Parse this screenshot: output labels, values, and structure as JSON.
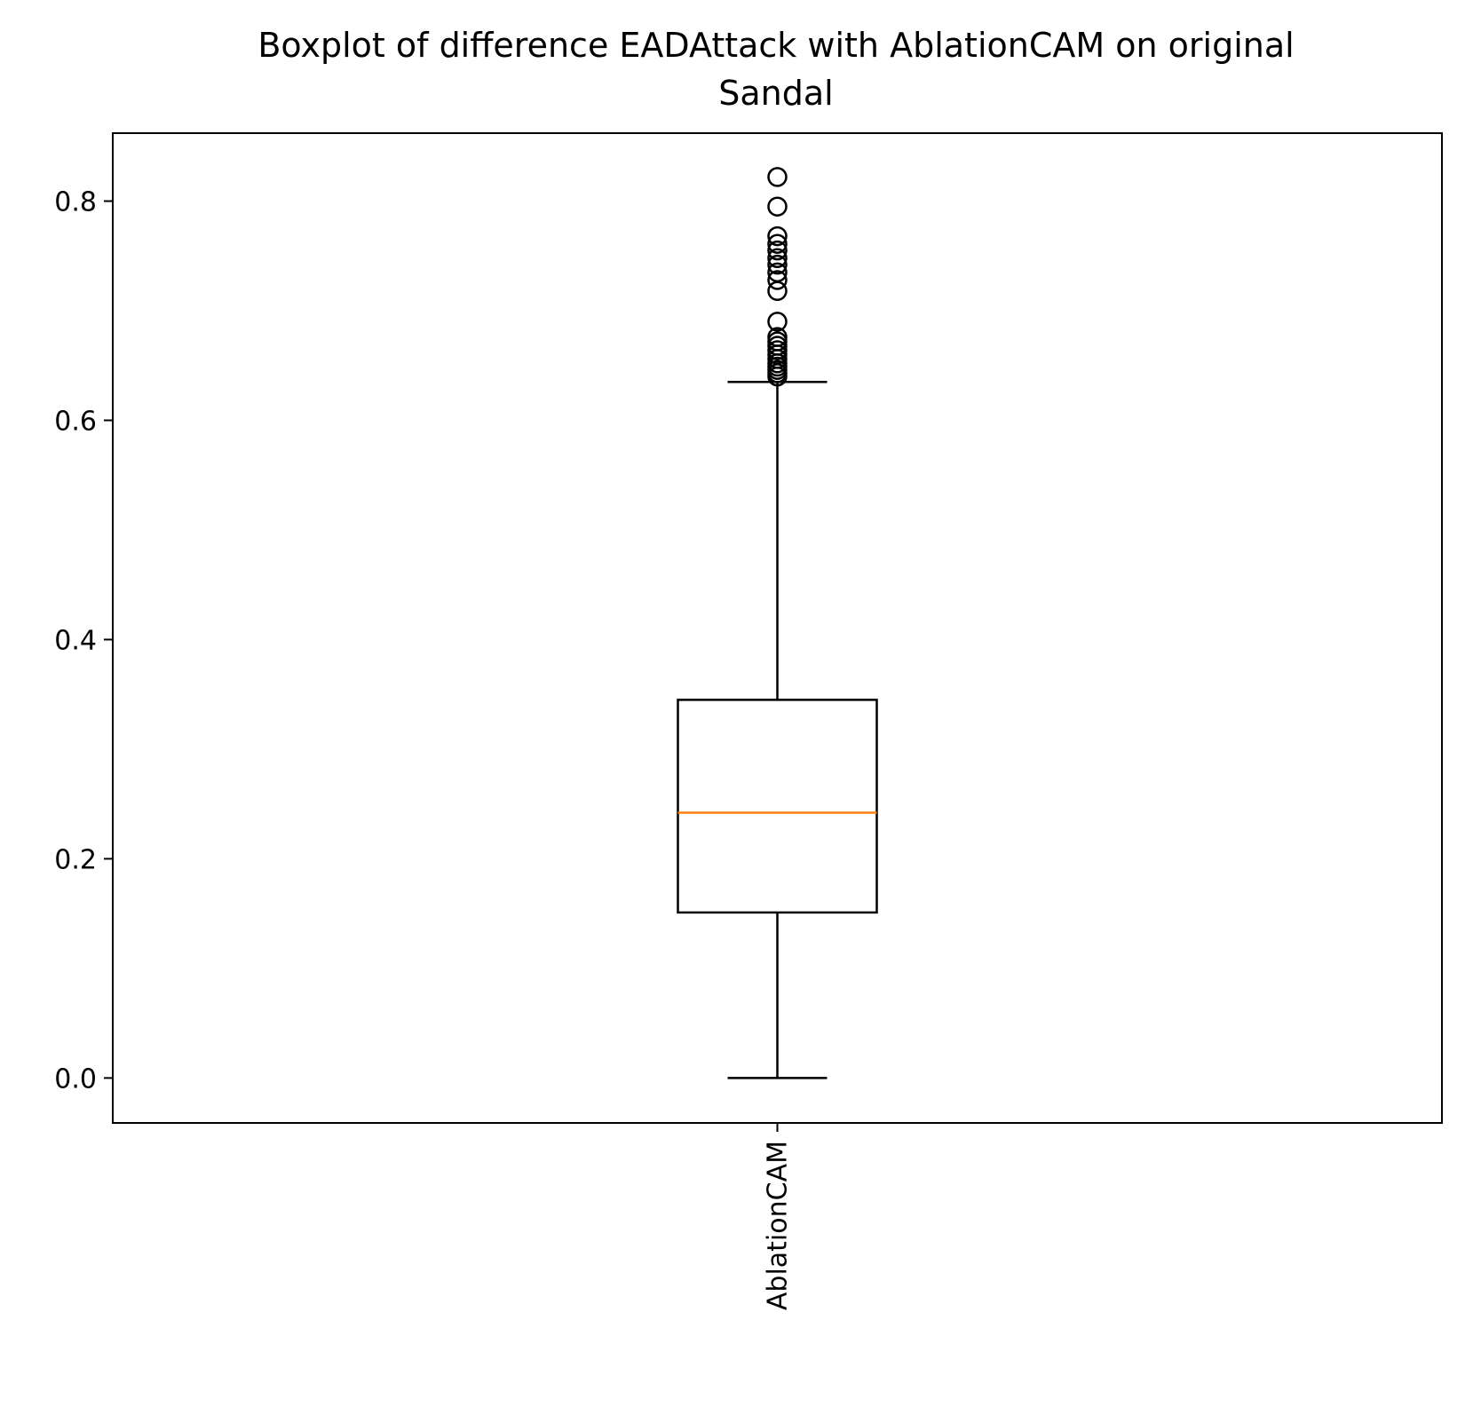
{
  "chart_data": {
    "type": "boxplot",
    "title_lines": [
      "Boxplot of difference EADAttack with AblationCAM on original",
      "Sandal"
    ],
    "xlabel": "",
    "ylabel": "",
    "categories": [
      "AblationCAM"
    ],
    "ylim": [
      -0.041,
      0.862
    ],
    "yticks": [
      {
        "value": 0.0,
        "label": "0.0"
      },
      {
        "value": 0.2,
        "label": "0.2"
      },
      {
        "value": 0.4,
        "label": "0.4"
      },
      {
        "value": 0.6,
        "label": "0.6"
      },
      {
        "value": 0.8,
        "label": "0.8"
      }
    ],
    "boxes": [
      {
        "category": "AblationCAM",
        "whisker_low": 0.0,
        "q1": 0.151,
        "median": 0.242,
        "q3": 0.345,
        "whisker_high": 0.635,
        "outliers": [
          0.64,
          0.643,
          0.646,
          0.649,
          0.652,
          0.656,
          0.66,
          0.664,
          0.668,
          0.672,
          0.676,
          0.69,
          0.718,
          0.728,
          0.735,
          0.742,
          0.748,
          0.755,
          0.761,
          0.768,
          0.795,
          0.822
        ]
      }
    ],
    "grid": false,
    "colors": {
      "box": "#000000",
      "median": "#ff7f0e",
      "whisker": "#000000",
      "outlier": "#000000"
    }
  }
}
